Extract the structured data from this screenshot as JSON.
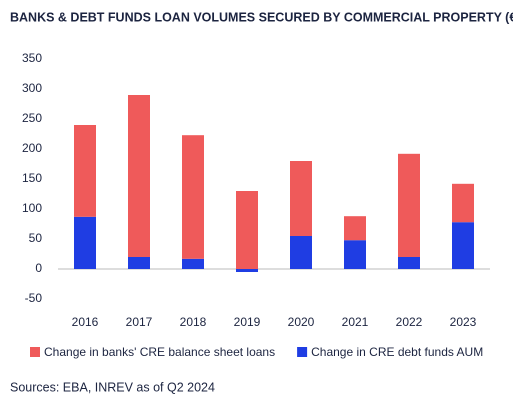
{
  "chart_data": {
    "type": "stacked_bar",
    "title": "BANKS & DEBT FUNDS LOAN VOLUMES SECURED BY COMMERCIAL PROPERTY (€ BN)",
    "categories": [
      "2016",
      "2017",
      "2018",
      "2019",
      "2020",
      "2021",
      "2022",
      "2023"
    ],
    "series": [
      {
        "name": "Change in CRE debt funds AUM",
        "color": "#1f3de3",
        "values": [
          87,
          20,
          17,
          -5,
          55,
          48,
          20,
          78
        ]
      },
      {
        "name": "Change in banks' CRE balance sheet loans",
        "color": "#ef5a5a",
        "values": [
          153,
          270,
          206,
          130,
          125,
          40,
          172,
          64
        ]
      }
    ],
    "ylim": [
      -50,
      350
    ],
    "yticks": [
      -50,
      0,
      50,
      100,
      150,
      200,
      250,
      300,
      350
    ],
    "legend": "bottom",
    "source": "Sources: EBA, INREV as of Q2 2024"
  }
}
